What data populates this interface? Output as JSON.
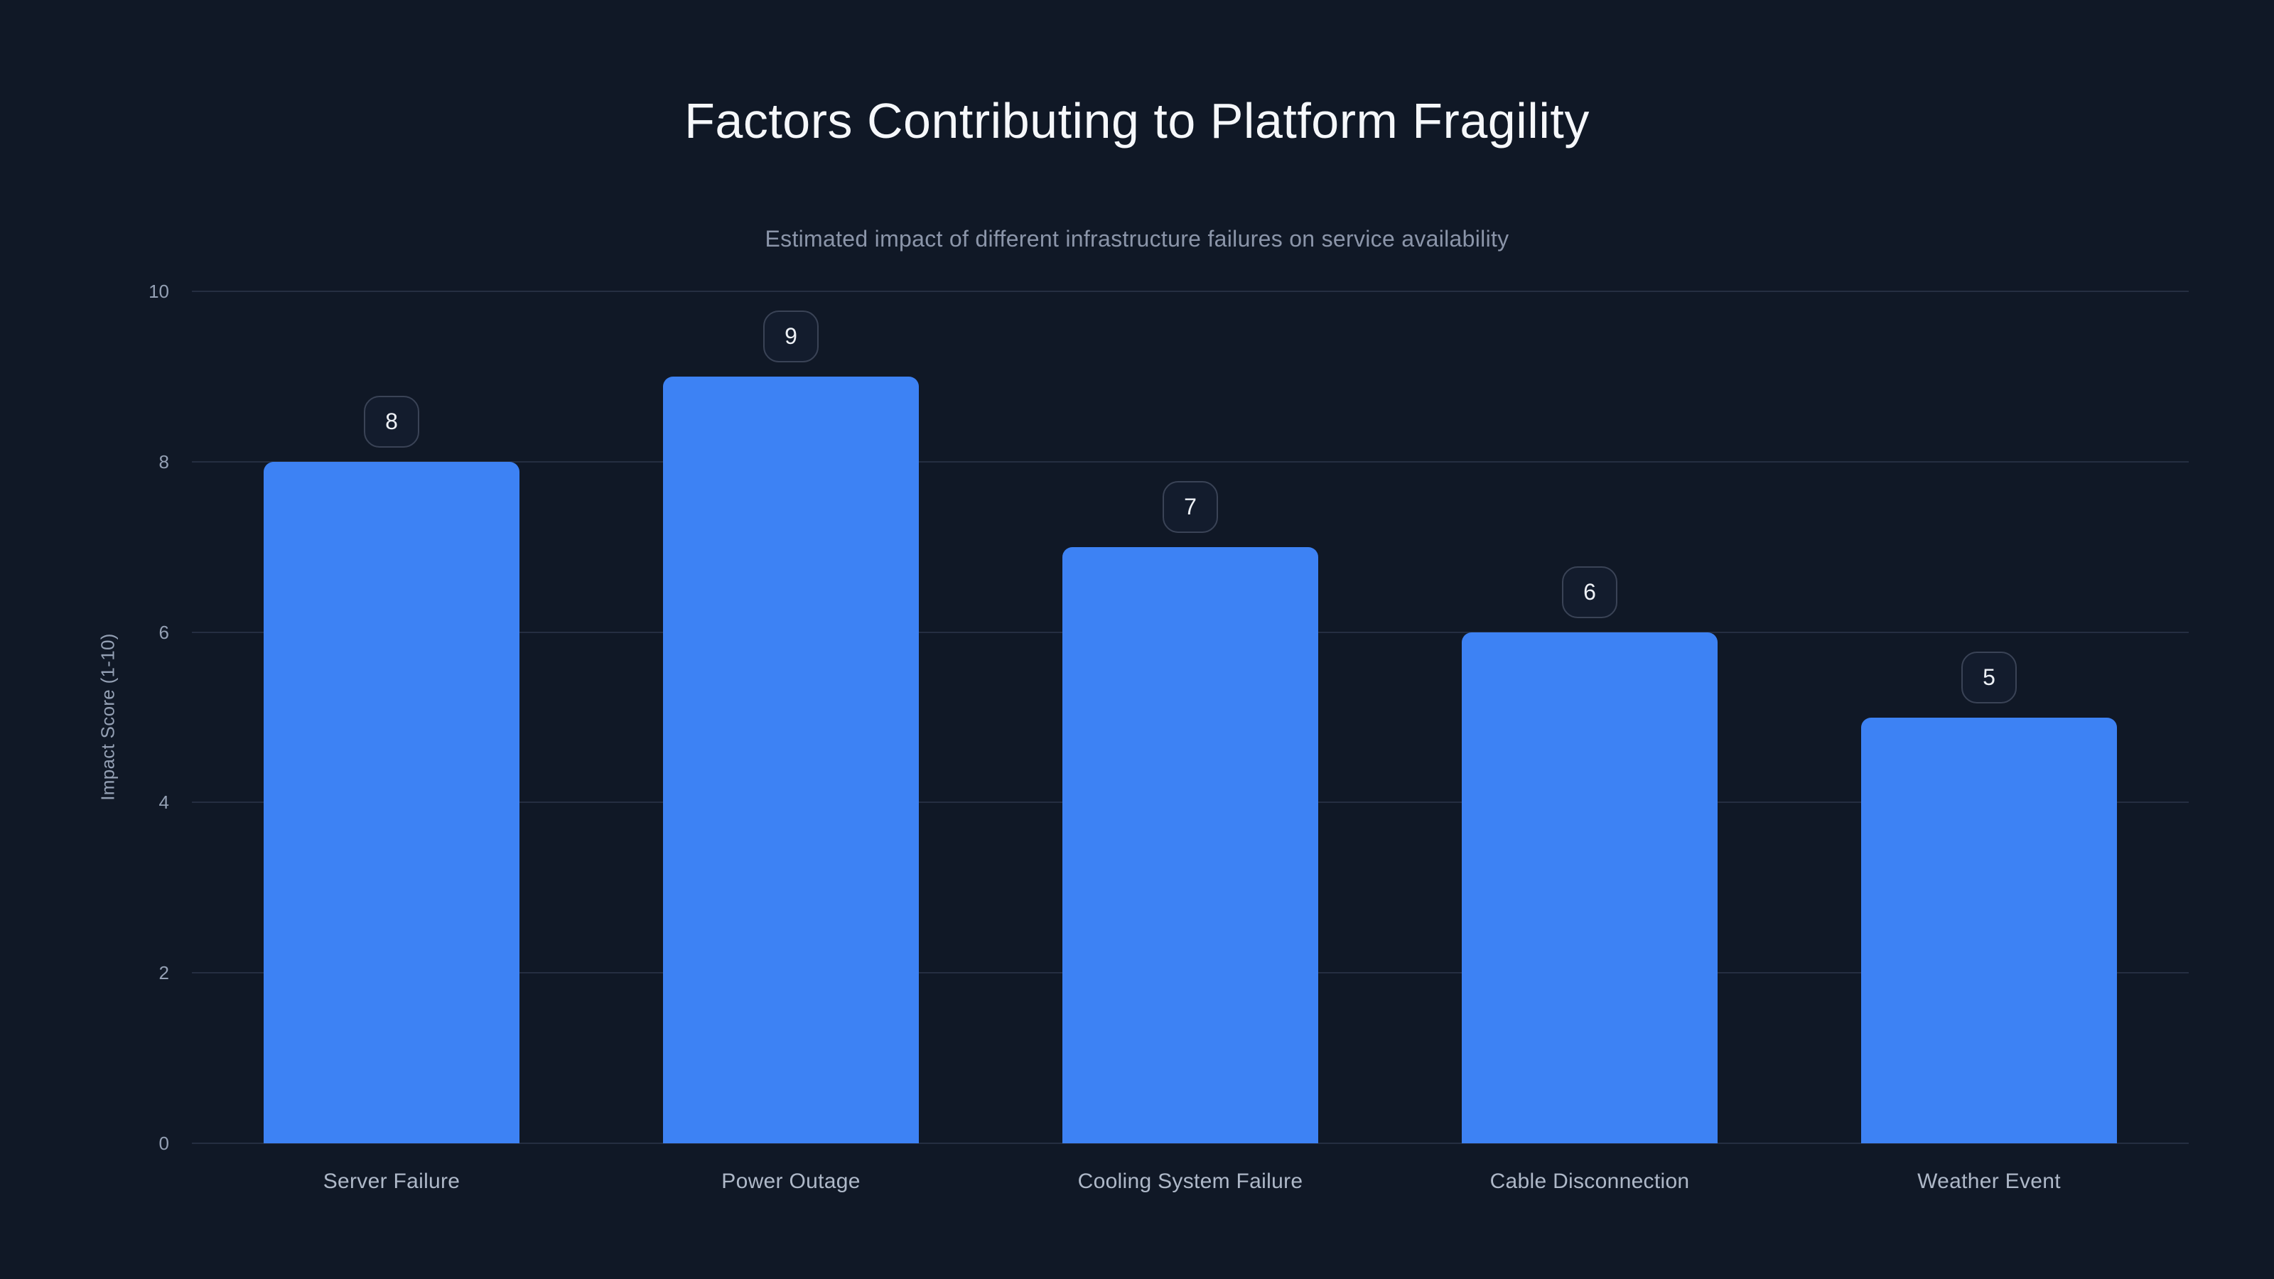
{
  "header": {
    "title": "Factors Contributing to Platform Fragility",
    "subtitle": "Estimated impact of different infrastructure failures on service availability"
  },
  "chart_data": {
    "type": "bar",
    "title": "Factors Contributing to Platform Fragility",
    "subtitle": "Estimated impact of different infrastructure failures on service availability",
    "categories": [
      "Server Failure",
      "Power Outage",
      "Cooling System Failure",
      "Cable Disconnection",
      "Weather Event"
    ],
    "values": [
      8,
      9,
      7,
      6,
      5
    ],
    "xlabel": "",
    "ylabel": "Impact Score (1-10)",
    "ylim": [
      0,
      10
    ],
    "yticks": [
      0,
      2,
      4,
      6,
      8,
      10
    ],
    "grid": "horizontal",
    "legend_position": "none",
    "value_labels": "badge above each bar"
  },
  "colors": {
    "bg": "#101826",
    "bar": "#3d82f4",
    "grid": "#252e41",
    "title": "#f5f7fa",
    "subtitle": "#8b95a9",
    "tick": "#94a0b4",
    "axis_title": "#94a0b4",
    "x_label": "#aeb8c8",
    "badge_bg": "#131c2d",
    "badge_border": "#3a4356",
    "badge_text": "#eef1f6"
  }
}
